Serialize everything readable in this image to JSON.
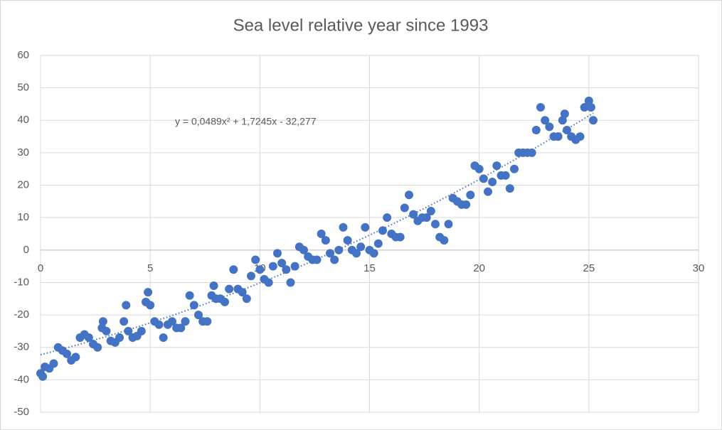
{
  "chart_data": {
    "type": "scatter",
    "title": "Sea level relative year since 1993",
    "x": [
      0,
      0.1,
      0.2,
      0.4,
      0.6,
      0.8,
      1.0,
      1.2,
      1.4,
      1.6,
      1.8,
      2.0,
      2.2,
      2.4,
      2.6,
      2.8,
      2.85,
      3.0,
      3.2,
      3.4,
      3.6,
      3.8,
      3.9,
      4.0,
      4.2,
      4.4,
      4.6,
      4.8,
      4.9,
      5.0,
      5.2,
      5.4,
      5.6,
      5.8,
      6.0,
      6.2,
      6.4,
      6.6,
      6.8,
      7.0,
      7.2,
      7.4,
      7.6,
      7.8,
      7.9,
      8.0,
      8.2,
      8.4,
      8.6,
      8.8,
      9.0,
      9.2,
      9.4,
      9.6,
      9.8,
      10.0,
      10.2,
      10.4,
      10.6,
      10.8,
      11.0,
      11.2,
      11.4,
      11.6,
      11.8,
      12.0,
      12.2,
      12.4,
      12.6,
      12.8,
      13.0,
      13.2,
      13.4,
      13.6,
      13.8,
      14.0,
      14.2,
      14.4,
      14.6,
      14.8,
      15.0,
      15.2,
      15.4,
      15.6,
      15.8,
      16.0,
      16.2,
      16.4,
      16.6,
      16.8,
      17.0,
      17.2,
      17.4,
      17.6,
      17.8,
      18.0,
      18.2,
      18.4,
      18.6,
      18.8,
      19.0,
      19.2,
      19.4,
      19.6,
      19.8,
      20.0,
      20.2,
      20.4,
      20.6,
      20.8,
      21.0,
      21.2,
      21.4,
      21.6,
      21.8,
      22.0,
      22.2,
      22.4,
      22.6,
      22.8,
      23.0,
      23.2,
      23.4,
      23.6,
      23.8,
      23.9,
      24.0,
      24.2,
      24.4,
      24.6,
      24.8,
      25.0,
      25.1,
      25.2
    ],
    "values": [
      -38,
      -39,
      -36,
      -36.5,
      -35,
      -30,
      -31,
      -32,
      -34,
      -33,
      -27,
      -26,
      -27,
      -29,
      -30,
      -24,
      -22,
      -25,
      -28,
      -28.5,
      -27,
      -22,
      -17,
      -25,
      -27,
      -26.5,
      -25,
      -16,
      -13,
      -17,
      -22,
      -23,
      -27,
      -23,
      -22,
      -24,
      -24,
      -22,
      -14,
      -17,
      -20,
      -22,
      -22,
      -14,
      -11,
      -15,
      -15,
      -16,
      -12,
      -6,
      -12,
      -13,
      -15,
      -8,
      -3,
      -6,
      -9,
      -10,
      -5,
      -1,
      -4,
      -6,
      -10,
      -5,
      1,
      0,
      -2,
      -3,
      -3,
      5,
      3,
      -1,
      -3,
      0,
      7,
      3,
      0,
      -1,
      1,
      7,
      0,
      -1,
      2,
      6,
      10,
      5,
      4,
      4,
      13,
      17,
      11,
      9,
      10,
      10,
      12,
      8,
      4,
      3,
      8,
      16,
      15,
      14,
      14,
      17,
      26,
      25,
      22,
      18,
      21,
      26,
      23,
      23,
      19,
      25,
      30,
      30,
      30,
      30,
      37,
      44,
      40,
      38,
      35,
      35,
      40,
      42,
      37,
      35,
      34,
      35,
      44,
      46,
      44,
      40
    ],
    "color": "#4472c4",
    "trendline": {
      "label": "y = 0,0489x² + 1,7245x - 32,277",
      "coefficients": [
        0.0489,
        1.7245,
        -32.277
      ]
    },
    "xlim": [
      0,
      30
    ],
    "xticks": [
      0,
      5,
      10,
      15,
      20,
      25,
      30
    ],
    "ylim": [
      -50,
      60
    ],
    "yticks": [
      -50,
      -40,
      -30,
      -20,
      -10,
      0,
      10,
      20,
      30,
      40,
      50,
      60
    ],
    "grid": true
  }
}
